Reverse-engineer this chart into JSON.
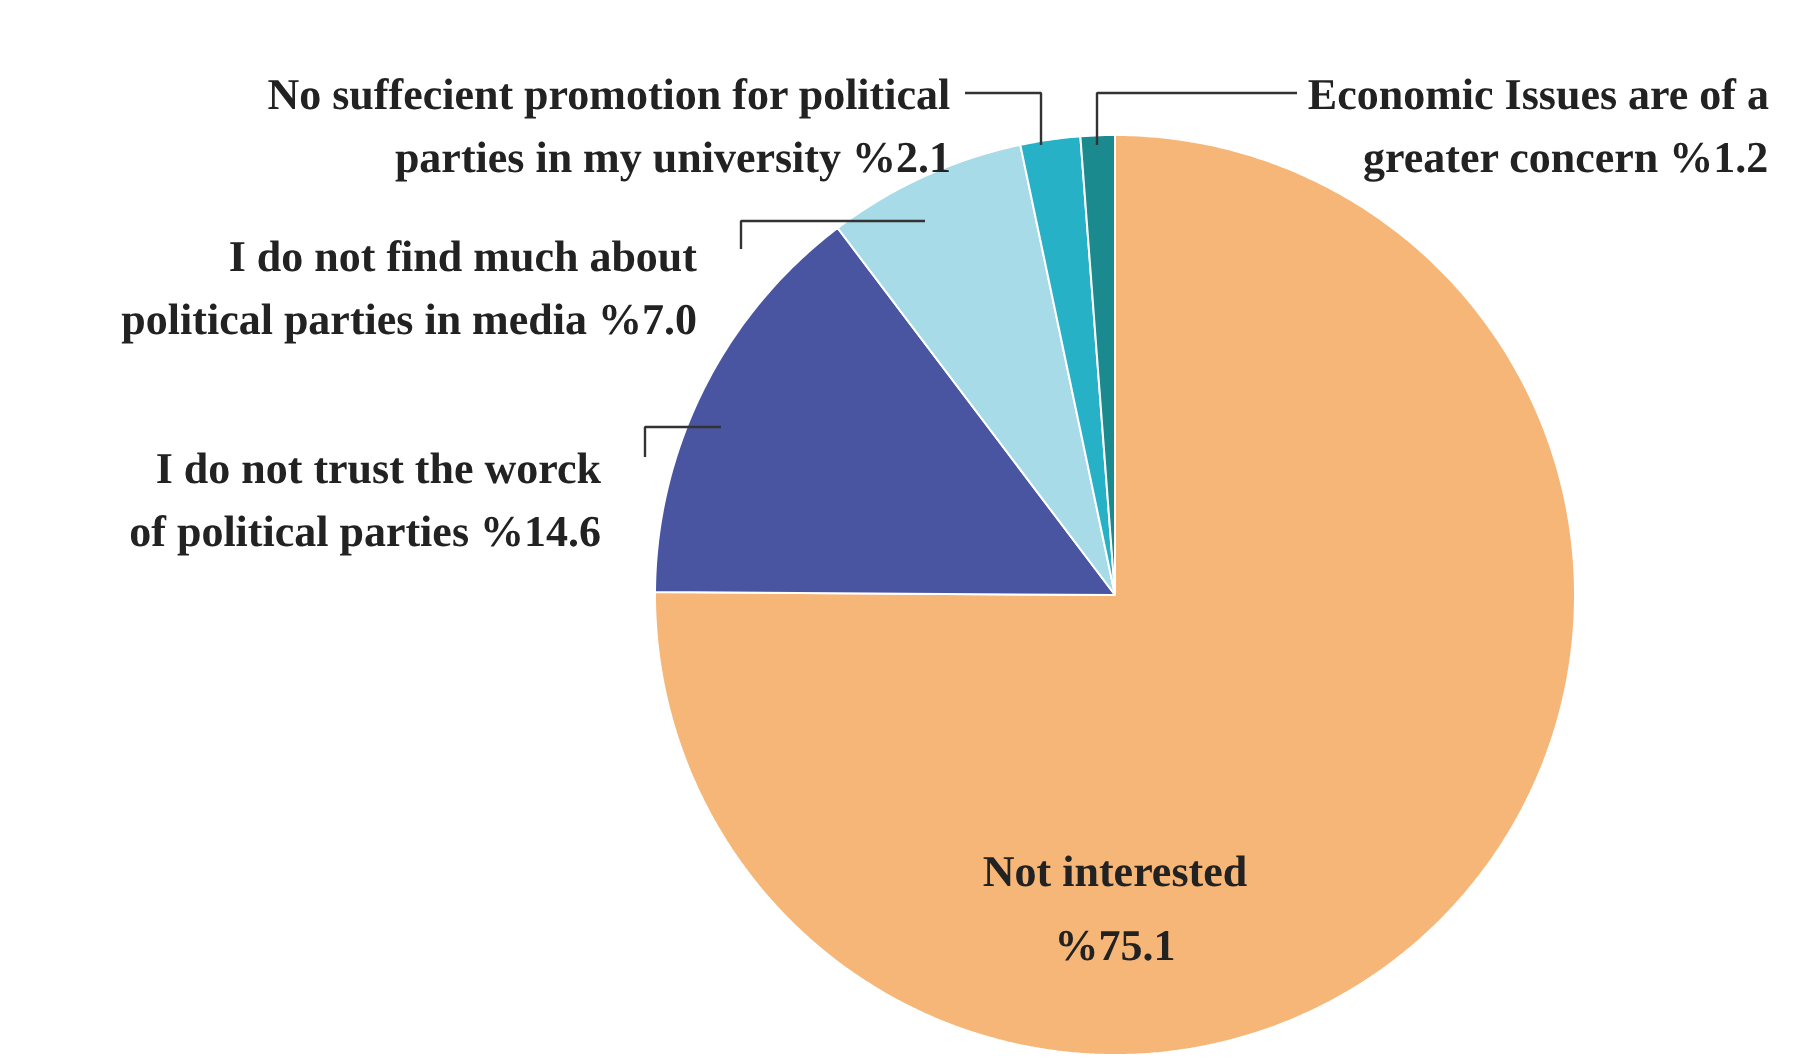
{
  "chart_data": {
    "type": "pie",
    "categories": [
      "Not interested",
      "I do not trust the worck\nof political parties",
      "I do not find much about\npolitical parties in media",
      "No suffecient promotion for political\nparties in my university",
      "Economic Issues are of a\ngreater concern"
    ],
    "values": [
      75.1,
      14.6,
      7.0,
      2.1,
      1.2
    ],
    "value_labels": [
      "%75.1",
      "%14.6",
      "%7.0",
      "%2.1",
      "%1.2"
    ],
    "colors": [
      "#f6b677",
      "#4a55a2",
      "#a8dbe8",
      "#27b1c6",
      "#1a8a8e"
    ]
  }
}
